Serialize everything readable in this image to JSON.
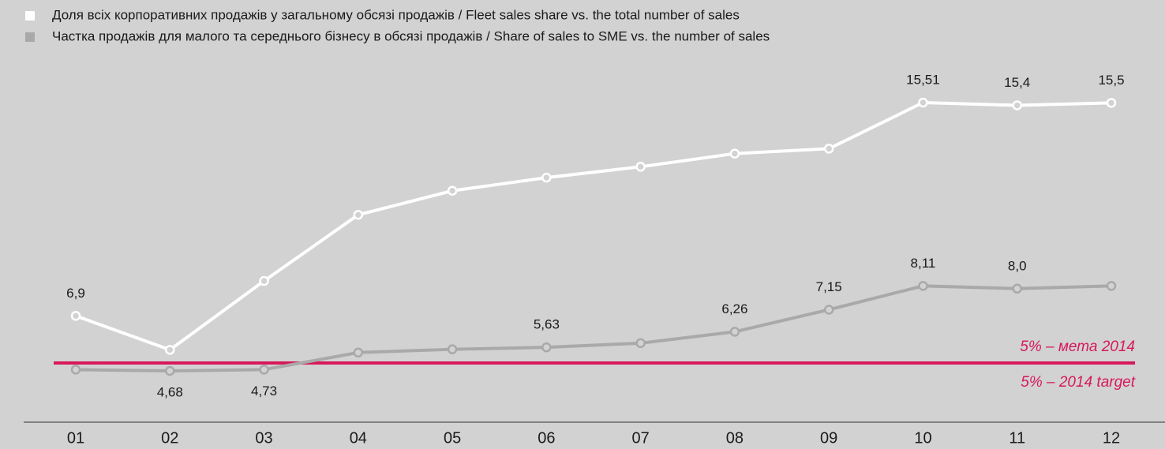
{
  "chart_data": {
    "type": "line",
    "categories": [
      "01",
      "02",
      "03",
      "04",
      "05",
      "06",
      "07",
      "08",
      "09",
      "10",
      "11",
      "12"
    ],
    "series": [
      {
        "name": "Доля всіх корпоративних продажів у загальному обсязі продажів / Fleet sales share vs. the total number of sales",
        "color": "#ffffff",
        "values": [
          6.9,
          5.53,
          8.31,
          10.98,
          11.95,
          12.48,
          12.92,
          13.45,
          13.65,
          15.51,
          15.4,
          15.5
        ],
        "value_labels": [
          "6,9",
          null,
          null,
          null,
          null,
          null,
          null,
          null,
          null,
          "15,51",
          "15,4",
          "15,5"
        ]
      },
      {
        "name": "Частка продажів для малого та середнього бізнесу в обсязі продажів / Share of sales to SME vs. the number of sales",
        "color": "#a9a9aa",
        "values": [
          4.73,
          4.68,
          4.73,
          5.42,
          5.55,
          5.63,
          5.8,
          6.26,
          7.15,
          8.11,
          8.0,
          8.11
        ],
        "value_labels": [
          null,
          "4,68",
          "4,73",
          null,
          null,
          "5,63",
          null,
          "6,26",
          "7,15",
          "8,11",
          "8,0",
          null
        ]
      }
    ],
    "target": {
      "value": 5,
      "color": "#d6195a",
      "labels": [
        "5% – мета 2014",
        "5% – 2014 target"
      ]
    }
  }
}
